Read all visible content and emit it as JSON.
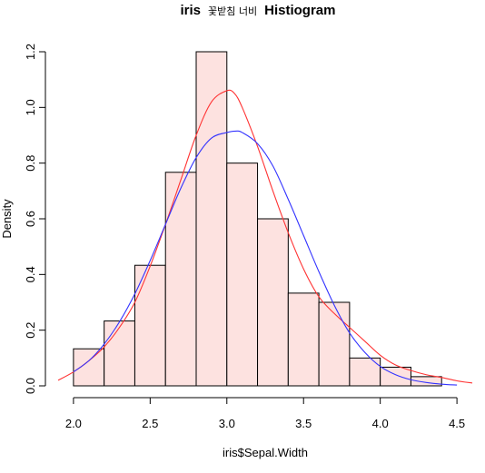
{
  "chart_data": {
    "type": "histogram",
    "title": {
      "prefix": "iris",
      "korean": "꽃받침 너비",
      "suffix": "Histiogram"
    },
    "xlabel": "iris$Sepal.Width",
    "ylabel": "Density",
    "xlim": [
      1.9,
      4.6
    ],
    "ylim": [
      0,
      1.2
    ],
    "x_ticks": [
      "2.0",
      "2.5",
      "3.0",
      "3.5",
      "4.0",
      "4.5"
    ],
    "x_tick_values": [
      2.0,
      2.5,
      3.0,
      3.5,
      4.0,
      4.5
    ],
    "y_ticks": [
      "0.0",
      "0.2",
      "0.4",
      "0.6",
      "0.8",
      "1.0",
      "1.2"
    ],
    "y_tick_values": [
      0.0,
      0.2,
      0.4,
      0.6,
      0.8,
      1.0,
      1.2
    ],
    "bins": [
      {
        "x0": 2.0,
        "x1": 2.2,
        "density": 0.133
      },
      {
        "x0": 2.2,
        "x1": 2.4,
        "density": 0.233
      },
      {
        "x0": 2.4,
        "x1": 2.6,
        "density": 0.433
      },
      {
        "x0": 2.6,
        "x1": 2.8,
        "density": 0.767
      },
      {
        "x0": 2.8,
        "x1": 3.0,
        "density": 1.2
      },
      {
        "x0": 3.0,
        "x1": 3.2,
        "density": 0.8
      },
      {
        "x0": 3.2,
        "x1": 3.4,
        "density": 0.6
      },
      {
        "x0": 3.4,
        "x1": 3.6,
        "density": 0.333
      },
      {
        "x0": 3.6,
        "x1": 3.8,
        "density": 0.3
      },
      {
        "x0": 3.8,
        "x1": 4.0,
        "density": 0.1
      },
      {
        "x0": 4.0,
        "x1": 4.2,
        "density": 0.067
      },
      {
        "x0": 4.2,
        "x1": 4.4,
        "density": 0.033
      }
    ],
    "series": [
      {
        "kind": "kernel-density",
        "color": "#ff3333",
        "x": [
          1.9,
          2.0,
          2.1,
          2.2,
          2.3,
          2.4,
          2.5,
          2.6,
          2.7,
          2.8,
          2.9,
          3.0,
          3.05,
          3.1,
          3.2,
          3.3,
          3.4,
          3.5,
          3.6,
          3.7,
          3.8,
          3.9,
          4.0,
          4.1,
          4.2,
          4.3,
          4.4,
          4.5,
          4.6
        ],
        "y": [
          0.02,
          0.05,
          0.09,
          0.14,
          0.21,
          0.3,
          0.43,
          0.58,
          0.74,
          0.9,
          1.02,
          1.06,
          1.05,
          1.0,
          0.86,
          0.7,
          0.55,
          0.42,
          0.32,
          0.26,
          0.21,
          0.16,
          0.11,
          0.075,
          0.055,
          0.04,
          0.03,
          0.018,
          0.01
        ]
      },
      {
        "kind": "normal-density",
        "color": "#3333ff",
        "x": [
          2.0,
          2.1,
          2.2,
          2.3,
          2.4,
          2.5,
          2.6,
          2.7,
          2.8,
          2.9,
          3.0,
          3.057,
          3.1,
          3.2,
          3.3,
          3.4,
          3.5,
          3.6,
          3.7,
          3.8,
          3.9,
          4.0,
          4.1,
          4.2,
          4.3,
          4.4,
          4.5
        ],
        "y": [
          0.05,
          0.09,
          0.15,
          0.23,
          0.33,
          0.45,
          0.58,
          0.71,
          0.82,
          0.89,
          0.91,
          0.915,
          0.91,
          0.87,
          0.79,
          0.67,
          0.54,
          0.41,
          0.29,
          0.19,
          0.12,
          0.07,
          0.04,
          0.022,
          0.012,
          0.006,
          0.003
        ]
      }
    ],
    "grid": false,
    "legend": "none"
  }
}
